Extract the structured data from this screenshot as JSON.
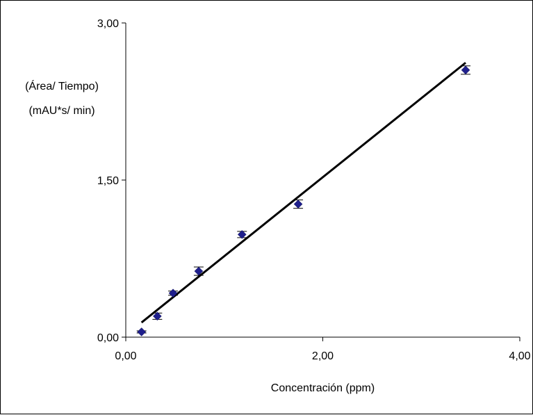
{
  "chart_data": {
    "type": "scatter",
    "title": "",
    "xlabel": "Concentración (ppm)",
    "ylabel": [
      "(Área/ Tiempo)",
      "(mAU*s/ min)"
    ],
    "xlim": [
      0,
      4
    ],
    "ylim": [
      0,
      3
    ],
    "x_ticks": [
      0,
      2,
      4
    ],
    "x_tick_labels": [
      "0,00",
      "2,00",
      "4,00"
    ],
    "y_ticks": [
      0,
      1.5,
      3
    ],
    "y_tick_labels": [
      "0,00",
      "1,50",
      "3,00"
    ],
    "grid": false,
    "legend": "none",
    "marker": "diamond",
    "series": [
      {
        "x": [
          0.16,
          0.32,
          0.48,
          0.74,
          1.18,
          1.75,
          3.45
        ],
        "y": [
          0.05,
          0.2,
          0.42,
          0.63,
          0.98,
          1.27,
          2.55
        ],
        "yerr": [
          0.01,
          0.03,
          0.02,
          0.04,
          0.03,
          0.04,
          0.04
        ],
        "color": "#1f1f8c"
      }
    ],
    "fit_line": {
      "type": "linear",
      "x": [
        0.16,
        3.45
      ],
      "y": [
        0.14,
        2.62
      ],
      "color": "#000000"
    }
  }
}
